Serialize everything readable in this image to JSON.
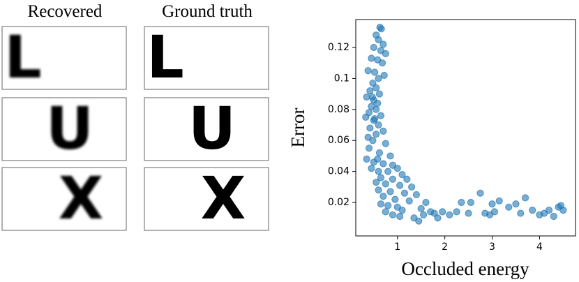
{
  "panels": {
    "headers": [
      "Recovered",
      "Ground truth"
    ],
    "letters": [
      "L",
      "U",
      "X"
    ]
  },
  "chart_data": {
    "type": "scatter",
    "xlabel": "Occluded energy",
    "ylabel": "Error",
    "color": "#1f77b4",
    "xlim": [
      0.12,
      4.76
    ],
    "ylim": [
      -0.0016,
      0.138
    ],
    "xticks": [
      1,
      2,
      3,
      4
    ],
    "yticks": [
      0.02,
      0.04,
      0.06,
      0.08,
      0.1,
      0.12
    ],
    "grid": false,
    "x": [
      0.63,
      0.66,
      0.55,
      0.6,
      0.7,
      0.5,
      0.65,
      0.75,
      0.45,
      0.58,
      0.68,
      0.38,
      0.52,
      0.72,
      0.6,
      0.48,
      0.55,
      0.42,
      0.62,
      0.35,
      0.5,
      0.58,
      0.45,
      0.55,
      0.4,
      0.65,
      0.33,
      0.5,
      0.6,
      0.42,
      0.7,
      0.55,
      0.38,
      0.48,
      0.75,
      0.4,
      0.62,
      0.85,
      0.35,
      0.5,
      0.7,
      0.9,
      0.45,
      0.6,
      0.8,
      1.0,
      1.1,
      0.65,
      0.9,
      1.2,
      0.55,
      0.75,
      1.05,
      1.3,
      0.6,
      0.85,
      1.15,
      1.4,
      0.7,
      0.95,
      1.25,
      1.6,
      0.65,
      0.8,
      1.0,
      1.1,
      0.75,
      0.9,
      1.05,
      1.35,
      1.45,
      1.5,
      1.7,
      1.85,
      1.95,
      2.1,
      2.25,
      2.35,
      2.55,
      2.75,
      2.85,
      2.95,
      3.05,
      3.15,
      3.35,
      3.5,
      3.6,
      3.7,
      3.85,
      4.0,
      4.1,
      4.2,
      4.3,
      4.4,
      4.5,
      4.45,
      1.78,
      2.5,
      3.0,
      1.55,
      0.52,
      0.58,
      0.47
    ],
    "y": [
      0.133,
      0.132,
      0.128,
      0.125,
      0.122,
      0.12,
      0.118,
      0.116,
      0.113,
      0.112,
      0.11,
      0.105,
      0.104,
      0.102,
      0.1,
      0.097,
      0.094,
      0.092,
      0.09,
      0.088,
      0.086,
      0.084,
      0.082,
      0.08,
      0.078,
      0.076,
      0.075,
      0.073,
      0.07,
      0.068,
      0.066,
      0.064,
      0.062,
      0.06,
      0.058,
      0.055,
      0.052,
      0.05,
      0.048,
      0.046,
      0.045,
      0.044,
      0.042,
      0.04,
      0.04,
      0.042,
      0.038,
      0.036,
      0.035,
      0.035,
      0.033,
      0.032,
      0.031,
      0.03,
      0.028,
      0.027,
      0.026,
      0.025,
      0.024,
      0.022,
      0.021,
      0.02,
      0.019,
      0.018,
      0.017,
      0.015,
      0.014,
      0.012,
      0.011,
      0.01,
      0.008,
      0.016,
      0.014,
      0.01,
      0.014,
      0.012,
      0.014,
      0.02,
      0.02,
      0.026,
      0.013,
      0.012,
      0.014,
      0.021,
      0.017,
      0.019,
      0.013,
      0.023,
      0.015,
      0.012,
      0.013,
      0.015,
      0.011,
      0.017,
      0.015,
      0.018,
      0.013,
      0.013,
      0.019,
      0.012,
      0.074,
      0.048,
      0.088
    ]
  }
}
